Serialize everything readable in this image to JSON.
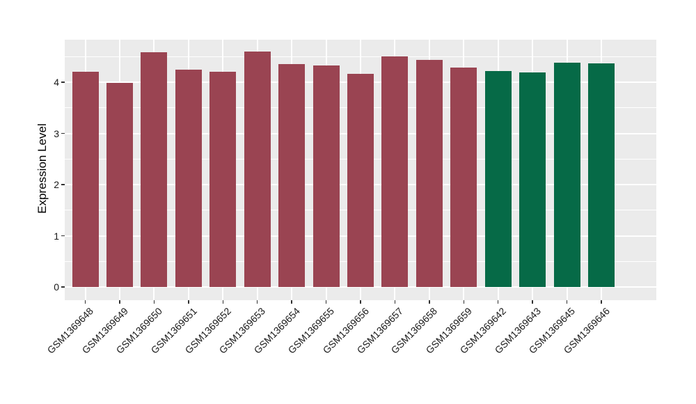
{
  "chart_data": {
    "type": "bar",
    "title": "",
    "xlabel": "",
    "ylabel": "Expression Level",
    "categories": [
      "GSM1369648",
      "GSM1369649",
      "GSM1369650",
      "GSM1369651",
      "GSM1369652",
      "GSM1369653",
      "GSM1369654",
      "GSM1369655",
      "GSM1369656",
      "GSM1369657",
      "GSM1369658",
      "GSM1369659",
      "GSM1369642",
      "GSM1369643",
      "GSM1369645",
      "GSM1369646"
    ],
    "values": [
      4.2,
      3.99,
      4.59,
      4.25,
      4.21,
      4.6,
      4.36,
      4.32,
      4.17,
      4.5,
      4.44,
      4.29,
      4.22,
      4.19,
      4.38,
      4.37
    ],
    "bar_colors": [
      "#9A4452",
      "#9A4452",
      "#9A4452",
      "#9A4452",
      "#9A4452",
      "#9A4452",
      "#9A4452",
      "#9A4452",
      "#9A4452",
      "#9A4452",
      "#9A4452",
      "#9A4452",
      "#066A47",
      "#066A47",
      "#066A47",
      "#066A47"
    ],
    "groups": [
      {
        "color": "#9A4452",
        "count": 12
      },
      {
        "color": "#066A47",
        "count": 4
      }
    ],
    "yticks": [
      0,
      1,
      2,
      3,
      4
    ],
    "yticks_minor": [
      0.5,
      1.5,
      2.5,
      3.5,
      4.5
    ],
    "ylim": [
      -0.23,
      4.84
    ],
    "grid": "on",
    "legend": "none",
    "colors": {
      "panel_bg": "#EBEBEB",
      "grid_major": "#FFFFFF",
      "grid_minor": "#FFFFFF",
      "axis_text": "#1a1a1a",
      "axis_title": "#000000",
      "tick_mark": "#333333",
      "figure_bg": "#FFFFFF"
    }
  }
}
